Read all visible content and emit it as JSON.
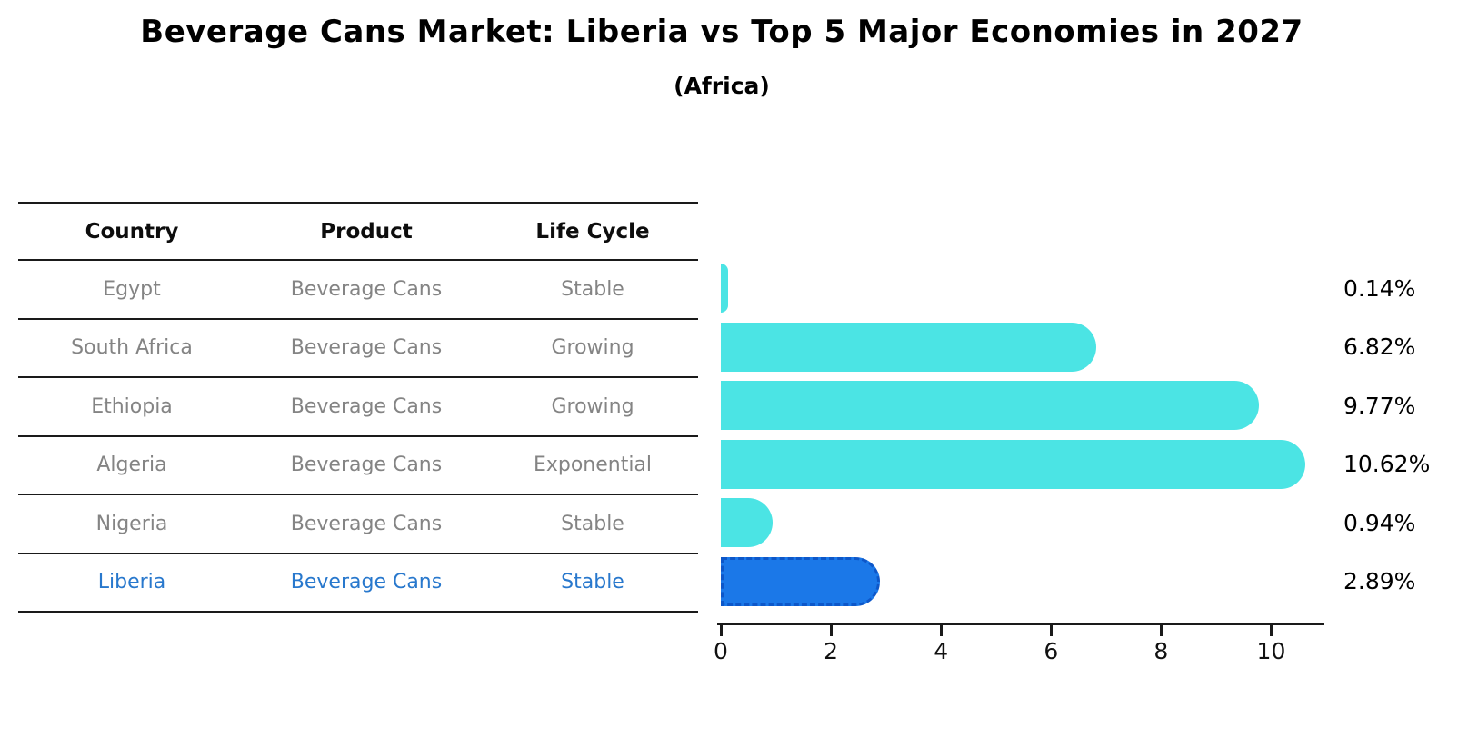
{
  "title": "Beverage Cans Market: Liberia vs Top 5 Major Economies in 2027",
  "subtitle": "(Africa)",
  "table": {
    "headers": [
      "Country",
      "Product",
      "Life Cycle"
    ],
    "rows": [
      {
        "country": "Egypt",
        "product": "Beverage Cans",
        "life_cycle": "Stable",
        "highlight": false
      },
      {
        "country": "South Africa",
        "product": "Beverage Cans",
        "life_cycle": "Growing",
        "highlight": false
      },
      {
        "country": "Ethiopia",
        "product": "Beverage Cans",
        "life_cycle": "Growing",
        "highlight": false
      },
      {
        "country": "Algeria",
        "product": "Beverage Cans",
        "life_cycle": "Exponential",
        "highlight": false
      },
      {
        "country": "Nigeria",
        "product": "Beverage Cans",
        "life_cycle": "Stable",
        "highlight": false
      },
      {
        "country": "Liberia",
        "product": "Beverage Cans",
        "life_cycle": "Stable",
        "highlight": true
      }
    ]
  },
  "chart_data": {
    "type": "bar",
    "orientation": "horizontal",
    "title": "Beverage Cans Market: Liberia vs Top 5 Major Economies in 2027",
    "subtitle": "(Africa)",
    "categories": [
      "Egypt",
      "South Africa",
      "Ethiopia",
      "Algeria",
      "Nigeria",
      "Liberia"
    ],
    "values": [
      0.14,
      6.82,
      9.77,
      10.62,
      0.94,
      2.89
    ],
    "value_labels": [
      "0.14%",
      "6.82%",
      "9.77%",
      "10.62%",
      "0.94%",
      "2.89%"
    ],
    "highlight_index": 5,
    "xlim": [
      0,
      11
    ],
    "xticks": [
      "0",
      "2",
      "4",
      "6",
      "8",
      "10"
    ],
    "grid": false,
    "legend": false,
    "bar_color": "#4be4e4",
    "highlight_bar_color": "#1b78e8",
    "highlight_bar_border_color": "#0d57c9"
  },
  "colors": {
    "table_text": "#848484",
    "table_header_text": "#0d0d0d",
    "highlight_text": "#2878cd",
    "axis": "#1a1a1a"
  }
}
